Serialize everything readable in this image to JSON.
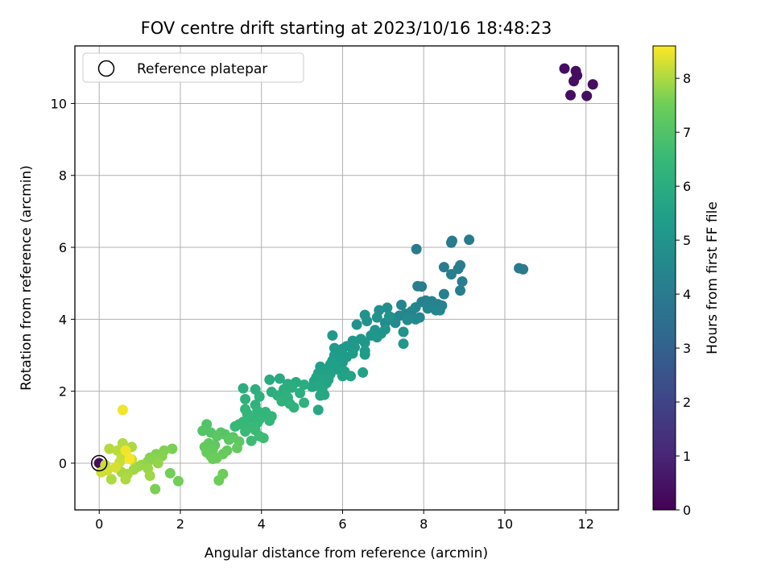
{
  "chart_data": {
    "type": "scatter",
    "title": "FOV centre drift starting at 2023/10/16 18:48:23",
    "xlabel": "Angular distance from reference (arcmin)",
    "ylabel": "Rotation from reference (arcmin)",
    "xlim": [
      -0.6,
      12.8
    ],
    "ylim": [
      -1.3,
      11.6
    ],
    "xticks": [
      0,
      2,
      4,
      6,
      8,
      10,
      12
    ],
    "yticks": [
      0,
      2,
      4,
      6,
      8,
      10
    ],
    "grid": true,
    "legend": {
      "entries": [
        "Reference platepar"
      ],
      "placement": "top-left"
    },
    "colorbar": {
      "label": "Hours from first FF file",
      "range": [
        0,
        8.6
      ],
      "ticks": [
        0,
        1,
        2,
        3,
        4,
        5,
        6,
        7,
        8
      ],
      "colormap": "viridis"
    },
    "reference_point": {
      "x": 0,
      "y": 0
    },
    "series": [
      {
        "points": [
          {
            "x": 11.47,
            "y": 10.97,
            "h": 0.35
          },
          {
            "x": 11.75,
            "y": 10.9,
            "h": 0.35
          },
          {
            "x": 11.78,
            "y": 10.78,
            "h": 0.35
          },
          {
            "x": 11.7,
            "y": 10.62,
            "h": 0.35
          },
          {
            "x": 12.17,
            "y": 10.53,
            "h": 0.35
          },
          {
            "x": 11.62,
            "y": 10.23,
            "h": 0.35
          },
          {
            "x": 12.02,
            "y": 10.21,
            "h": 0.35
          },
          {
            "x": 0.0,
            "y": 0.0,
            "h": 0.3
          },
          {
            "x": 10.35,
            "y": 5.42,
            "h": 3.95
          },
          {
            "x": 10.45,
            "y": 5.39,
            "h": 3.95
          },
          {
            "x": 9.12,
            "y": 6.21,
            "h": 4.0
          },
          {
            "x": 8.7,
            "y": 6.18,
            "h": 4.0
          },
          {
            "x": 8.68,
            "y": 6.13,
            "h": 4.0
          },
          {
            "x": 7.82,
            "y": 5.95,
            "h": 4.05
          },
          {
            "x": 8.9,
            "y": 5.5,
            "h": 4.05
          },
          {
            "x": 8.85,
            "y": 5.4,
            "h": 4.05
          },
          {
            "x": 8.5,
            "y": 5.45,
            "h": 4.05
          },
          {
            "x": 8.68,
            "y": 5.25,
            "h": 4.1
          },
          {
            "x": 8.95,
            "y": 5.05,
            "h": 4.1
          },
          {
            "x": 7.85,
            "y": 4.92,
            "h": 4.1
          },
          {
            "x": 7.95,
            "y": 4.91,
            "h": 4.1
          },
          {
            "x": 8.9,
            "y": 4.8,
            "h": 4.1
          },
          {
            "x": 8.5,
            "y": 4.7,
            "h": 4.2
          },
          {
            "x": 8.05,
            "y": 4.52,
            "h": 4.3
          },
          {
            "x": 8.2,
            "y": 4.5,
            "h": 4.3
          },
          {
            "x": 7.95,
            "y": 4.48,
            "h": 4.35
          },
          {
            "x": 8.35,
            "y": 4.42,
            "h": 4.35
          },
          {
            "x": 7.45,
            "y": 4.4,
            "h": 4.4
          },
          {
            "x": 8.45,
            "y": 4.38,
            "h": 4.35
          },
          {
            "x": 7.8,
            "y": 4.33,
            "h": 4.4
          },
          {
            "x": 8.1,
            "y": 4.3,
            "h": 4.4
          },
          {
            "x": 8.4,
            "y": 4.25,
            "h": 4.4
          },
          {
            "x": 8.3,
            "y": 4.25,
            "h": 4.45
          },
          {
            "x": 7.7,
            "y": 4.22,
            "h": 4.45
          },
          {
            "x": 7.55,
            "y": 4.15,
            "h": 4.5
          },
          {
            "x": 7.4,
            "y": 4.1,
            "h": 4.5
          },
          {
            "x": 7.9,
            "y": 4.05,
            "h": 4.5
          },
          {
            "x": 7.2,
            "y": 4.05,
            "h": 4.55
          },
          {
            "x": 7.8,
            "y": 4.0,
            "h": 4.55
          },
          {
            "x": 7.6,
            "y": 3.98,
            "h": 4.6
          },
          {
            "x": 7.3,
            "y": 3.9,
            "h": 4.6
          },
          {
            "x": 7.05,
            "y": 3.9,
            "h": 4.6
          },
          {
            "x": 7.1,
            "y": 4.32,
            "h": 4.8
          },
          {
            "x": 6.9,
            "y": 4.25,
            "h": 4.8
          },
          {
            "x": 6.55,
            "y": 4.12,
            "h": 4.9
          },
          {
            "x": 6.85,
            "y": 4.05,
            "h": 4.9
          },
          {
            "x": 7.15,
            "y": 4.08,
            "h": 4.9
          },
          {
            "x": 6.6,
            "y": 3.95,
            "h": 4.95
          },
          {
            "x": 6.35,
            "y": 3.85,
            "h": 4.95
          },
          {
            "x": 7.05,
            "y": 3.72,
            "h": 5.0
          },
          {
            "x": 6.8,
            "y": 3.7,
            "h": 5.0
          },
          {
            "x": 7.5,
            "y": 3.65,
            "h": 5.0
          },
          {
            "x": 6.95,
            "y": 3.6,
            "h": 5.0
          },
          {
            "x": 6.7,
            "y": 3.55,
            "h": 5.05
          },
          {
            "x": 6.85,
            "y": 3.5,
            "h": 5.05
          },
          {
            "x": 6.45,
            "y": 3.45,
            "h": 5.05
          },
          {
            "x": 6.25,
            "y": 3.4,
            "h": 5.1
          },
          {
            "x": 6.55,
            "y": 3.35,
            "h": 5.1
          },
          {
            "x": 7.5,
            "y": 3.32,
            "h": 5.1
          },
          {
            "x": 6.1,
            "y": 3.25,
            "h": 5.15
          },
          {
            "x": 6.3,
            "y": 3.22,
            "h": 5.15
          },
          {
            "x": 5.75,
            "y": 3.55,
            "h": 5.2
          },
          {
            "x": 5.8,
            "y": 3.2,
            "h": 5.2
          },
          {
            "x": 6.0,
            "y": 3.18,
            "h": 5.2
          },
          {
            "x": 6.55,
            "y": 3.12,
            "h": 5.25
          },
          {
            "x": 6.25,
            "y": 3.05,
            "h": 5.25
          },
          {
            "x": 5.95,
            "y": 3.05,
            "h": 5.25
          },
          {
            "x": 6.55,
            "y": 3.02,
            "h": 5.3
          },
          {
            "x": 5.8,
            "y": 3.0,
            "h": 5.3
          },
          {
            "x": 6.1,
            "y": 2.95,
            "h": 5.3
          },
          {
            "x": 5.9,
            "y": 2.9,
            "h": 5.35
          },
          {
            "x": 5.75,
            "y": 2.85,
            "h": 5.35
          },
          {
            "x": 6.0,
            "y": 2.8,
            "h": 5.35
          },
          {
            "x": 5.7,
            "y": 2.75,
            "h": 5.4
          },
          {
            "x": 5.85,
            "y": 2.7,
            "h": 5.4
          },
          {
            "x": 5.45,
            "y": 2.68,
            "h": 5.4
          },
          {
            "x": 5.6,
            "y": 2.62,
            "h": 5.45
          },
          {
            "x": 5.9,
            "y": 2.6,
            "h": 5.45
          },
          {
            "x": 6.05,
            "y": 2.55,
            "h": 5.45
          },
          {
            "x": 6.5,
            "y": 2.52,
            "h": 5.5
          },
          {
            "x": 5.4,
            "y": 2.5,
            "h": 5.5
          },
          {
            "x": 5.7,
            "y": 2.48,
            "h": 5.5
          },
          {
            "x": 5.55,
            "y": 2.45,
            "h": 5.5
          },
          {
            "x": 6.0,
            "y": 2.42,
            "h": 5.55
          },
          {
            "x": 6.2,
            "y": 2.42,
            "h": 5.55
          },
          {
            "x": 5.35,
            "y": 2.38,
            "h": 5.6
          },
          {
            "x": 5.5,
            "y": 2.35,
            "h": 5.6
          },
          {
            "x": 5.65,
            "y": 2.32,
            "h": 5.6
          },
          {
            "x": 5.3,
            "y": 2.28,
            "h": 5.65
          },
          {
            "x": 5.45,
            "y": 2.25,
            "h": 5.65
          },
          {
            "x": 5.6,
            "y": 2.22,
            "h": 5.65
          },
          {
            "x": 5.4,
            "y": 2.15,
            "h": 5.7
          },
          {
            "x": 5.25,
            "y": 2.12,
            "h": 5.7
          },
          {
            "x": 5.5,
            "y": 2.05,
            "h": 5.7
          },
          {
            "x": 5.55,
            "y": 1.9,
            "h": 5.75
          },
          {
            "x": 5.45,
            "y": 1.88,
            "h": 5.75
          },
          {
            "x": 5.4,
            "y": 1.48,
            "h": 5.75
          },
          {
            "x": 4.45,
            "y": 2.35,
            "h": 5.9
          },
          {
            "x": 4.2,
            "y": 2.32,
            "h": 5.9
          },
          {
            "x": 4.85,
            "y": 2.25,
            "h": 5.9
          },
          {
            "x": 4.65,
            "y": 2.2,
            "h": 5.95
          },
          {
            "x": 5.05,
            "y": 2.18,
            "h": 5.95
          },
          {
            "x": 4.75,
            "y": 2.1,
            "h": 6.0
          },
          {
            "x": 4.55,
            "y": 2.05,
            "h": 6.0
          },
          {
            "x": 3.55,
            "y": 2.08,
            "h": 6.0
          },
          {
            "x": 3.85,
            "y": 2.05,
            "h": 6.05
          },
          {
            "x": 4.25,
            "y": 1.98,
            "h": 6.05
          },
          {
            "x": 4.95,
            "y": 1.95,
            "h": 6.05
          },
          {
            "x": 4.6,
            "y": 1.9,
            "h": 6.1
          },
          {
            "x": 4.4,
            "y": 1.88,
            "h": 6.1
          },
          {
            "x": 3.95,
            "y": 1.85,
            "h": 6.15
          },
          {
            "x": 4.65,
            "y": 1.82,
            "h": 6.15
          },
          {
            "x": 3.6,
            "y": 1.78,
            "h": 6.15
          },
          {
            "x": 4.5,
            "y": 1.72,
            "h": 6.2
          },
          {
            "x": 5.05,
            "y": 1.68,
            "h": 6.2
          },
          {
            "x": 4.7,
            "y": 1.65,
            "h": 6.2
          },
          {
            "x": 3.85,
            "y": 1.62,
            "h": 6.25
          },
          {
            "x": 4.8,
            "y": 1.55,
            "h": 6.25
          },
          {
            "x": 3.6,
            "y": 1.5,
            "h": 6.3
          },
          {
            "x": 3.9,
            "y": 1.45,
            "h": 6.3
          },
          {
            "x": 4.1,
            "y": 1.42,
            "h": 6.3
          },
          {
            "x": 3.65,
            "y": 1.38,
            "h": 6.35
          },
          {
            "x": 4.05,
            "y": 1.32,
            "h": 6.35
          },
          {
            "x": 4.25,
            "y": 1.3,
            "h": 6.35
          },
          {
            "x": 3.75,
            "y": 1.25,
            "h": 6.4
          },
          {
            "x": 3.95,
            "y": 1.22,
            "h": 6.4
          },
          {
            "x": 4.2,
            "y": 1.18,
            "h": 6.4
          },
          {
            "x": 3.55,
            "y": 1.15,
            "h": 6.45
          },
          {
            "x": 3.9,
            "y": 1.12,
            "h": 6.45
          },
          {
            "x": 3.45,
            "y": 1.08,
            "h": 6.5
          },
          {
            "x": 3.35,
            "y": 1.02,
            "h": 6.5
          },
          {
            "x": 3.7,
            "y": 0.98,
            "h": 6.5
          },
          {
            "x": 3.85,
            "y": 0.92,
            "h": 6.55
          },
          {
            "x": 3.6,
            "y": 0.88,
            "h": 6.55
          },
          {
            "x": 3.95,
            "y": 0.75,
            "h": 6.6
          },
          {
            "x": 4.05,
            "y": 0.7,
            "h": 6.6
          },
          {
            "x": 3.75,
            "y": 0.62,
            "h": 6.6
          },
          {
            "x": 2.65,
            "y": 1.08,
            "h": 7.0
          },
          {
            "x": 2.55,
            "y": 0.9,
            "h": 7.05
          },
          {
            "x": 2.75,
            "y": 0.85,
            "h": 7.05
          },
          {
            "x": 3.0,
            "y": 0.85,
            "h": 7.1
          },
          {
            "x": 3.1,
            "y": 0.8,
            "h": 7.1
          },
          {
            "x": 2.9,
            "y": 0.75,
            "h": 7.15
          },
          {
            "x": 3.3,
            "y": 0.72,
            "h": 7.15
          },
          {
            "x": 3.2,
            "y": 0.65,
            "h": 7.2
          },
          {
            "x": 3.45,
            "y": 0.6,
            "h": 7.2
          },
          {
            "x": 2.7,
            "y": 0.55,
            "h": 7.25
          },
          {
            "x": 2.85,
            "y": 0.5,
            "h": 7.25
          },
          {
            "x": 2.6,
            "y": 0.45,
            "h": 7.3
          },
          {
            "x": 3.4,
            "y": 0.42,
            "h": 7.3
          },
          {
            "x": 2.8,
            "y": 0.38,
            "h": 7.35
          },
          {
            "x": 3.15,
            "y": 0.35,
            "h": 7.35
          },
          {
            "x": 2.65,
            "y": 0.3,
            "h": 7.4
          },
          {
            "x": 3.05,
            "y": 0.25,
            "h": 7.4
          },
          {
            "x": 2.75,
            "y": 0.2,
            "h": 7.4
          },
          {
            "x": 2.9,
            "y": 0.15,
            "h": 7.45
          },
          {
            "x": 2.8,
            "y": 0.12,
            "h": 7.45
          },
          {
            "x": 3.05,
            "y": -0.3,
            "h": 7.5
          },
          {
            "x": 2.95,
            "y": -0.48,
            "h": 7.5
          },
          {
            "x": 1.75,
            "y": -0.28,
            "h": 7.55
          },
          {
            "x": 1.95,
            "y": -0.5,
            "h": 7.55
          },
          {
            "x": 1.38,
            "y": -0.72,
            "h": 7.6
          },
          {
            "x": 1.8,
            "y": 0.4,
            "h": 7.6
          },
          {
            "x": 1.6,
            "y": 0.35,
            "h": 7.65
          },
          {
            "x": 1.4,
            "y": 0.25,
            "h": 7.65
          },
          {
            "x": 1.55,
            "y": 0.2,
            "h": 7.7
          },
          {
            "x": 1.25,
            "y": 0.15,
            "h": 7.7
          },
          {
            "x": 1.35,
            "y": 0.1,
            "h": 7.75
          },
          {
            "x": 1.2,
            "y": 0.05,
            "h": 7.75
          },
          {
            "x": 1.45,
            "y": 0.0,
            "h": 7.8
          },
          {
            "x": 1.05,
            "y": -0.05,
            "h": 7.8
          },
          {
            "x": 0.95,
            "y": -0.1,
            "h": 7.85
          },
          {
            "x": 1.2,
            "y": -0.15,
            "h": 7.85
          },
          {
            "x": 0.85,
            "y": -0.18,
            "h": 7.9
          },
          {
            "x": 1.25,
            "y": -0.35,
            "h": 7.9
          },
          {
            "x": 0.7,
            "y": -0.3,
            "h": 7.95
          },
          {
            "x": 0.55,
            "y": -0.25,
            "h": 7.95
          },
          {
            "x": 0.65,
            "y": -0.45,
            "h": 8.0
          },
          {
            "x": 0.3,
            "y": -0.45,
            "h": 8.0
          },
          {
            "x": 0.8,
            "y": 0.45,
            "h": 8.0
          },
          {
            "x": 0.58,
            "y": 0.55,
            "h": 8.05
          },
          {
            "x": 0.25,
            "y": 0.4,
            "h": 8.05
          },
          {
            "x": 0.45,
            "y": 0.35,
            "h": 8.1
          },
          {
            "x": 0.65,
            "y": 0.3,
            "h": 8.1
          },
          {
            "x": 0.55,
            "y": 0.15,
            "h": 8.15
          },
          {
            "x": 0.8,
            "y": 0.1,
            "h": 8.15
          },
          {
            "x": 0.5,
            "y": 0.02,
            "h": 8.2
          },
          {
            "x": 0.15,
            "y": -0.05,
            "h": 8.2
          },
          {
            "x": 0.2,
            "y": -0.2,
            "h": 8.25
          },
          {
            "x": 0.05,
            "y": -0.25,
            "h": 8.25
          },
          {
            "x": 0.4,
            "y": -0.12,
            "h": 8.3
          },
          {
            "x": 0.58,
            "y": 1.48,
            "h": 8.5
          },
          {
            "x": 0.65,
            "y": 0.35,
            "h": 8.5
          },
          {
            "x": 0.75,
            "y": 0.12,
            "h": 8.55
          }
        ]
      }
    ]
  }
}
